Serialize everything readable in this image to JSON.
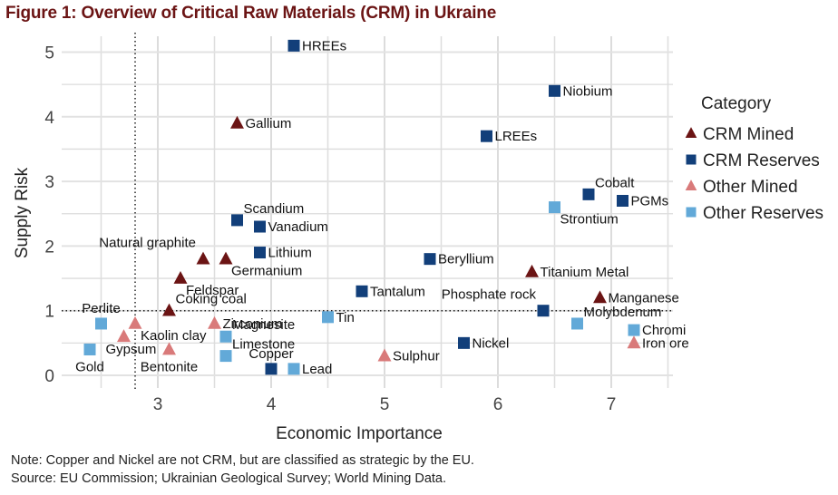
{
  "title": "Figure 1: Overview of Critical Raw Materials (CRM) in Ukraine",
  "notes": {
    "note": "Note: Copper and Nickel are not CRM, but are classified as strategic by the EU.",
    "source": "Source: EU Commission; Ukrainian Geological Survey; World Mining Data."
  },
  "chart_data": {
    "type": "scatter",
    "title": "Figure 1: Overview of Critical Raw Materials (CRM) in Ukraine",
    "xlabel": "Economic Importance",
    "ylabel": "Supply Risk",
    "xlim": [
      2.25,
      7.5
    ],
    "ylim": [
      -0.1,
      5.2
    ],
    "xticks": [
      3,
      4,
      5,
      6,
      7
    ],
    "yticks": [
      0,
      1,
      2,
      3,
      4,
      5
    ],
    "grid": true,
    "reference_lines": [
      {
        "axis": "x",
        "value": 2.8,
        "style": "dotted"
      },
      {
        "axis": "y",
        "value": 1.0,
        "style": "dotted"
      }
    ],
    "legend": {
      "title": "Category",
      "placement": "right"
    },
    "categories": [
      {
        "name": "CRM Mined",
        "marker": "triangle",
        "color": "#6b1414"
      },
      {
        "name": "CRM Reserves",
        "marker": "square",
        "color": "#123f7a"
      },
      {
        "name": "Other Mined",
        "marker": "triangle",
        "color": "#d97a7a"
      },
      {
        "name": "Other Reserves",
        "marker": "square",
        "color": "#62a9d8"
      }
    ],
    "points": [
      {
        "label": "HREEs",
        "x": 4.2,
        "y": 5.1,
        "category": "CRM Reserves",
        "label_pos": "right"
      },
      {
        "label": "Niobium",
        "x": 6.5,
        "y": 4.4,
        "category": "CRM Reserves",
        "label_pos": "right"
      },
      {
        "label": "Gallium",
        "x": 3.7,
        "y": 3.9,
        "category": "CRM Mined",
        "label_pos": "right"
      },
      {
        "label": "LREEs",
        "x": 5.9,
        "y": 3.7,
        "category": "CRM Reserves",
        "label_pos": "right"
      },
      {
        "label": "Cobalt",
        "x": 6.8,
        "y": 2.8,
        "category": "CRM Reserves",
        "label_pos": "upright"
      },
      {
        "label": "PGMs",
        "x": 7.1,
        "y": 2.7,
        "category": "CRM Reserves",
        "label_pos": "right"
      },
      {
        "label": "Strontium",
        "x": 6.5,
        "y": 2.6,
        "category": "Other Reserves",
        "label_pos": "downright"
      },
      {
        "label": "Scandium",
        "x": 3.7,
        "y": 2.4,
        "category": "CRM Reserves",
        "label_pos": "upright"
      },
      {
        "label": "Vanadium",
        "x": 3.9,
        "y": 2.3,
        "category": "CRM Reserves",
        "label_pos": "right"
      },
      {
        "label": "Lithium",
        "x": 3.9,
        "y": 1.9,
        "category": "CRM Reserves",
        "label_pos": "right"
      },
      {
        "label": "Natural graphite",
        "x": 3.4,
        "y": 1.8,
        "category": "CRM Mined",
        "label_pos": "upleft"
      },
      {
        "label": "Germanium",
        "x": 3.6,
        "y": 1.8,
        "category": "CRM Mined",
        "label_pos": "downright"
      },
      {
        "label": "Beryllium",
        "x": 5.4,
        "y": 1.8,
        "category": "CRM Reserves",
        "label_pos": "right"
      },
      {
        "label": "Titanium Metal",
        "x": 6.3,
        "y": 1.6,
        "category": "CRM Mined",
        "label_pos": "right"
      },
      {
        "label": "Feldspar",
        "x": 3.2,
        "y": 1.5,
        "category": "CRM Mined",
        "label_pos": "downright"
      },
      {
        "label": "Tantalum",
        "x": 4.8,
        "y": 1.3,
        "category": "CRM Reserves",
        "label_pos": "right"
      },
      {
        "label": "Manganese",
        "x": 6.9,
        "y": 1.2,
        "category": "CRM Mined",
        "label_pos": "right"
      },
      {
        "label": "Coking coal",
        "x": 3.1,
        "y": 1.0,
        "category": "CRM Mined",
        "label_pos": "upright"
      },
      {
        "label": "Phosphate rock",
        "x": 6.4,
        "y": 1.0,
        "category": "CRM Reserves",
        "label_pos": "upleft"
      },
      {
        "label": "Tin",
        "x": 4.5,
        "y": 0.9,
        "category": "Other Reserves",
        "label_pos": "right"
      },
      {
        "label": "Perlite",
        "x": 2.5,
        "y": 0.8,
        "category": "Other Reserves",
        "label_pos": "up"
      },
      {
        "label": "Kaolin clay",
        "x": 2.8,
        "y": 0.8,
        "category": "Other Mined",
        "label_pos": "downright"
      },
      {
        "label": "Zirconium",
        "x": 3.5,
        "y": 0.8,
        "category": "Other Mined",
        "label_pos": "right"
      },
      {
        "label": "Molybdenum",
        "x": 6.7,
        "y": 0.8,
        "category": "Other Reserves",
        "label_pos": "upright"
      },
      {
        "label": "Chromi",
        "x": 7.2,
        "y": 0.7,
        "category": "Other Reserves",
        "label_pos": "right"
      },
      {
        "label": "Gypsum",
        "x": 2.7,
        "y": 0.6,
        "category": "Other Mined",
        "label_pos": "downleft"
      },
      {
        "label": "Magnesite",
        "x": 3.6,
        "y": 0.6,
        "category": "Other Reserves",
        "label_pos": "upright"
      },
      {
        "label": "Iron ore",
        "x": 7.2,
        "y": 0.5,
        "category": "Other Mined",
        "label_pos": "right"
      },
      {
        "label": "Nickel",
        "x": 5.7,
        "y": 0.5,
        "category": "CRM Reserves",
        "label_pos": "right"
      },
      {
        "label": "Gold",
        "x": 2.4,
        "y": 0.4,
        "category": "Other Reserves",
        "label_pos": "down"
      },
      {
        "label": "Bentonite",
        "x": 3.1,
        "y": 0.4,
        "category": "Other Mined",
        "label_pos": "down"
      },
      {
        "label": "Limestone",
        "x": 3.6,
        "y": 0.3,
        "category": "Other Reserves",
        "label_pos": "upright"
      },
      {
        "label": "Sulphur",
        "x": 5.0,
        "y": 0.3,
        "category": "Other Mined",
        "label_pos": "right"
      },
      {
        "label": "Copper",
        "x": 4.0,
        "y": 0.1,
        "category": "CRM Reserves",
        "label_pos": "up"
      },
      {
        "label": "Lead",
        "x": 4.2,
        "y": 0.1,
        "category": "Other Reserves",
        "label_pos": "right"
      }
    ]
  }
}
